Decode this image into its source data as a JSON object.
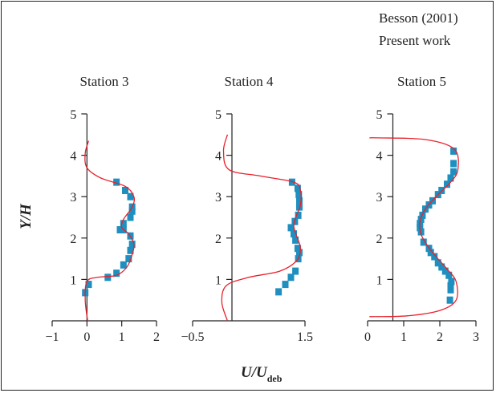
{
  "legend": {
    "entries": [
      "Besson (2001)",
      "Present work"
    ]
  },
  "axes": {
    "ylabel": "Y/H",
    "xlabel_main": "U/U",
    "xlabel_sub": "deb"
  },
  "colors": {
    "experiment": "#1e8fbf",
    "simulation": "#e8212b",
    "axis": "#222222"
  },
  "chart_data": [
    {
      "type": "scatter",
      "title": "Station 3",
      "xlim": [
        -1,
        2
      ],
      "ylim": [
        0,
        5
      ],
      "xticks": [
        -1,
        0,
        1,
        2
      ],
      "yticks": [
        1,
        2,
        3,
        4,
        5
      ],
      "series": [
        {
          "name": "Besson (2001)",
          "kind": "points",
          "x": [
            -0.05,
            0.05,
            0.6,
            0.85,
            1.05,
            1.2,
            1.25,
            1.3,
            1.25,
            1.05,
            0.95,
            1.05,
            1.25,
            1.3,
            1.3,
            1.25,
            1.1,
            0.85
          ],
          "y": [
            0.68,
            0.88,
            1.05,
            1.15,
            1.35,
            1.5,
            1.7,
            1.85,
            2.05,
            2.2,
            2.2,
            2.35,
            2.5,
            2.65,
            2.75,
            3.0,
            3.15,
            3.35
          ]
        },
        {
          "name": "Present work",
          "kind": "line",
          "x": [
            0.02,
            -0.05,
            0.0,
            0.3,
            0.85,
            1.15,
            1.3,
            1.35,
            1.2,
            1.0,
            1.05,
            1.3,
            1.35,
            1.1,
            0.4,
            0.0,
            -0.05,
            0.05
          ],
          "y": [
            0.0,
            0.5,
            0.95,
            1.05,
            1.1,
            1.3,
            1.6,
            1.85,
            2.1,
            2.25,
            2.45,
            2.75,
            3.0,
            3.25,
            3.45,
            3.7,
            4.05,
            4.35
          ]
        }
      ]
    },
    {
      "type": "scatter",
      "title": "Station 4",
      "xlim": [
        -0.5,
        1.5
      ],
      "ylim": [
        0,
        5
      ],
      "xticks": [
        -0.5,
        1.5
      ],
      "yticks": [
        1,
        2,
        3,
        4,
        5
      ],
      "series": [
        {
          "name": "Besson (2001)",
          "kind": "points",
          "x": [
            1.03,
            1.15,
            1.25,
            1.33,
            1.38,
            1.4,
            1.37,
            1.33,
            1.3,
            1.25,
            1.32,
            1.38,
            1.4,
            1.4,
            1.39,
            1.37,
            1.27
          ],
          "y": [
            0.7,
            0.88,
            1.05,
            1.2,
            1.5,
            1.65,
            1.75,
            1.95,
            2.1,
            2.25,
            2.4,
            2.55,
            2.75,
            2.9,
            3.05,
            3.2,
            3.35
          ]
        },
        {
          "name": "Present work",
          "kind": "line",
          "x": [
            0.12,
            0.02,
            0.1,
            0.5,
            1.05,
            1.35,
            1.42,
            1.35,
            1.3,
            1.35,
            1.42,
            1.42,
            1.3,
            0.7,
            0.15,
            0.05,
            0.12
          ],
          "y": [
            0.0,
            0.45,
            0.85,
            1.05,
            1.2,
            1.45,
            1.75,
            2.05,
            2.3,
            2.55,
            2.8,
            3.15,
            3.35,
            3.5,
            3.65,
            4.1,
            4.5
          ]
        }
      ]
    },
    {
      "type": "scatter",
      "title": "Station 5",
      "xlim": [
        0,
        3
      ],
      "ylim": [
        0,
        5
      ],
      "xticks": [
        0,
        1,
        2,
        3
      ],
      "yticks": [
        1,
        2,
        3,
        4,
        5
      ],
      "series": [
        {
          "name": "Besson (2001)",
          "kind": "points",
          "x": [
            2.28,
            2.3,
            2.3,
            2.32,
            2.25,
            2.15,
            2.05,
            1.95,
            1.85,
            1.75,
            1.7,
            1.55,
            1.48,
            1.45,
            1.45,
            1.48,
            1.52,
            1.6,
            1.7,
            1.8,
            1.95,
            2.05,
            2.2,
            2.3,
            2.38,
            2.38,
            2.38
          ],
          "y": [
            0.5,
            0.75,
            0.85,
            0.95,
            1.1,
            1.2,
            1.3,
            1.4,
            1.55,
            1.65,
            1.75,
            1.9,
            2.15,
            2.25,
            2.35,
            2.45,
            2.55,
            2.7,
            2.8,
            2.9,
            3.05,
            3.15,
            3.3,
            3.45,
            3.6,
            3.8,
            4.1
          ]
        },
        {
          "name": "Present work",
          "kind": "line",
          "x": [
            0.05,
            1.1,
            2.0,
            2.45,
            2.45,
            2.2,
            1.8,
            1.5,
            1.45,
            1.6,
            1.95,
            2.3,
            2.5,
            2.4,
            1.6,
            0.3,
            0.05
          ],
          "y": [
            0.1,
            0.12,
            0.25,
            0.5,
            0.95,
            1.25,
            1.65,
            2.05,
            2.4,
            2.7,
            3.05,
            3.35,
            3.65,
            4.15,
            4.38,
            4.42,
            4.42
          ]
        }
      ]
    }
  ]
}
